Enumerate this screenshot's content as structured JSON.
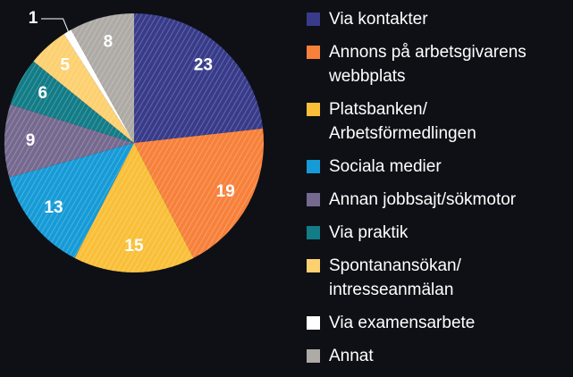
{
  "chart_data": {
    "type": "pie",
    "categories": [
      "Via kontakter",
      "Annons på arbetsgivarens webbplats",
      "Platsbanken/ Arbetsförmedlingen",
      "Sociala medier",
      "Annan jobbsajt/sökmotor",
      "Via praktik",
      "Spontanansökan/ intresseanmälan",
      "Via examensarbete",
      "Annat"
    ],
    "values": [
      23,
      19,
      15,
      13,
      9,
      6,
      5,
      1,
      8
    ],
    "colors": [
      "#383b8a",
      "#f7813b",
      "#f9bf38",
      "#169bd7",
      "#76698f",
      "#127c87",
      "#fdd070",
      "#ffffff",
      "#aeaaa5"
    ],
    "legend": "right"
  }
}
